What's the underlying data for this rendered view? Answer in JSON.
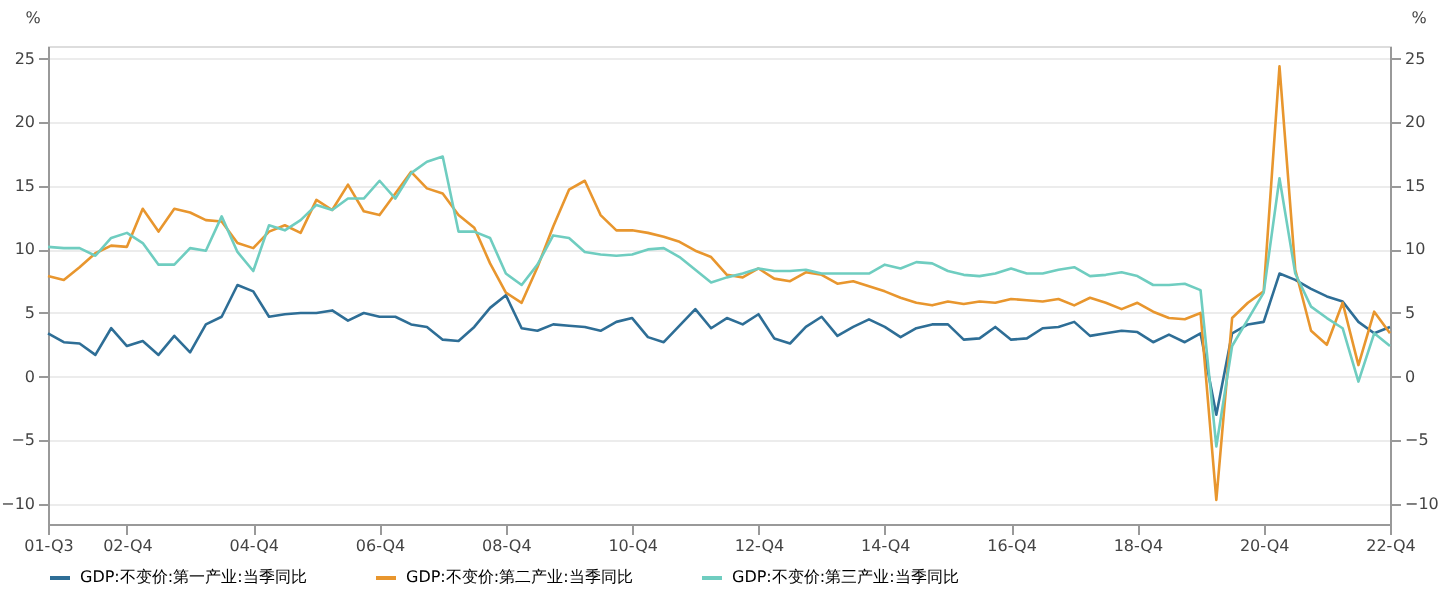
{
  "chart_data": {
    "type": "line",
    "categories": [
      "01-Q3",
      null,
      null,
      null,
      null,
      "02-Q4",
      null,
      null,
      null,
      null,
      null,
      null,
      null,
      "04-Q4",
      null,
      null,
      null,
      null,
      null,
      null,
      null,
      "06-Q4",
      null,
      null,
      null,
      null,
      null,
      null,
      null,
      "08-Q4",
      null,
      null,
      null,
      null,
      null,
      null,
      null,
      "10-Q4",
      null,
      null,
      null,
      null,
      null,
      null,
      null,
      "12-Q4",
      null,
      null,
      null,
      null,
      null,
      null,
      null,
      "14-Q4",
      null,
      null,
      null,
      null,
      null,
      null,
      null,
      "16-Q4",
      null,
      null,
      null,
      null,
      null,
      null,
      null,
      "18-Q4",
      null,
      null,
      null,
      null,
      null,
      null,
      null,
      "20-Q4",
      null,
      null,
      null,
      null,
      null,
      null,
      null,
      "22-Q4"
    ],
    "series": [
      {
        "name": "GDP:不变价:第一产业:当季同比",
        "color": "#2e6e96",
        "values": [
          3.4,
          2.7,
          2.6,
          1.7,
          3.8,
          2.4,
          2.8,
          1.7,
          3.2,
          1.9,
          4.1,
          4.7,
          7.2,
          6.7,
          4.7,
          4.9,
          5.0,
          5.0,
          5.2,
          4.4,
          5.0,
          4.7,
          4.7,
          4.1,
          3.9,
          2.9,
          2.8,
          3.9,
          5.4,
          6.4,
          3.8,
          3.6,
          4.1,
          4.0,
          3.9,
          3.6,
          4.3,
          4.6,
          3.1,
          2.7,
          4.0,
          5.3,
          3.8,
          4.6,
          4.1,
          4.9,
          3.0,
          2.6,
          3.9,
          4.7,
          3.2,
          3.9,
          4.5,
          3.9,
          3.1,
          3.8,
          4.1,
          4.1,
          2.9,
          3.0,
          3.9,
          2.9,
          3.0,
          3.8,
          3.9,
          4.3,
          3.2,
          3.4,
          3.6,
          3.5,
          2.7,
          3.3,
          2.7,
          3.4,
          -3.0,
          3.4,
          4.1,
          4.3,
          8.1,
          7.6,
          6.9,
          6.3,
          5.9,
          4.3,
          3.4,
          3.9
        ]
      },
      {
        "name": "GDP:不变价:第二产业:当季同比",
        "color": "#e8962e",
        "values": [
          7.9,
          7.6,
          8.6,
          9.7,
          10.3,
          10.2,
          13.2,
          11.4,
          13.2,
          12.9,
          12.3,
          12.2,
          10.5,
          10.1,
          11.4,
          11.9,
          11.3,
          13.9,
          13.1,
          15.1,
          13.0,
          12.7,
          14.4,
          16.1,
          14.8,
          14.4,
          12.7,
          11.7,
          8.9,
          6.6,
          5.8,
          8.6,
          11.8,
          14.7,
          15.4,
          12.7,
          11.5,
          11.5,
          11.3,
          11.0,
          10.6,
          9.9,
          9.4,
          8.0,
          7.8,
          8.5,
          7.7,
          7.5,
          8.2,
          8.0,
          7.3,
          7.5,
          7.1,
          6.7,
          6.2,
          5.8,
          5.6,
          5.9,
          5.7,
          5.9,
          5.8,
          6.1,
          6.0,
          5.9,
          6.1,
          5.6,
          6.2,
          5.8,
          5.3,
          5.8,
          5.1,
          4.6,
          4.5,
          5.0,
          -9.7,
          4.6,
          5.8,
          6.7,
          24.4,
          8.4,
          3.6,
          2.5,
          5.8,
          0.9,
          5.1,
          3.4
        ]
      },
      {
        "name": "GDP:不变价:第三产业:当季同比",
        "color": "#6fcdc0",
        "values": [
          10.2,
          10.1,
          10.1,
          9.5,
          10.9,
          11.3,
          10.5,
          8.8,
          8.8,
          10.1,
          9.9,
          12.6,
          9.8,
          8.3,
          11.9,
          11.5,
          12.3,
          13.5,
          13.1,
          14.0,
          14.0,
          15.4,
          14.0,
          16.0,
          16.9,
          17.3,
          11.4,
          11.4,
          10.9,
          8.1,
          7.2,
          8.8,
          11.1,
          10.9,
          9.8,
          9.6,
          9.5,
          9.6,
          10.0,
          10.1,
          9.4,
          8.4,
          7.4,
          7.8,
          8.1,
          8.5,
          8.3,
          8.3,
          8.4,
          8.1,
          8.1,
          8.1,
          8.1,
          8.8,
          8.5,
          9.0,
          8.9,
          8.3,
          8.0,
          7.9,
          8.1,
          8.5,
          8.1,
          8.1,
          8.4,
          8.6,
          7.9,
          8.0,
          8.2,
          7.9,
          7.2,
          7.2,
          7.3,
          6.8,
          -5.5,
          2.4,
          4.5,
          6.6,
          15.6,
          8.1,
          5.5,
          4.6,
          3.8,
          -0.4,
          3.4,
          2.4
        ]
      }
    ],
    "ylabel": "%",
    "ylim": [
      -11.6,
      26
    ],
    "yticks": [
      -10,
      -5,
      0,
      5,
      10,
      15,
      20,
      25
    ],
    "y2label": "%",
    "y2lim": [
      -11.6,
      26
    ],
    "y2ticks": [
      -10,
      -5,
      0,
      5,
      10,
      15,
      20,
      25
    ],
    "grid": "y",
    "legend": "bottom",
    "marker": "none",
    "line_style": "solid"
  }
}
